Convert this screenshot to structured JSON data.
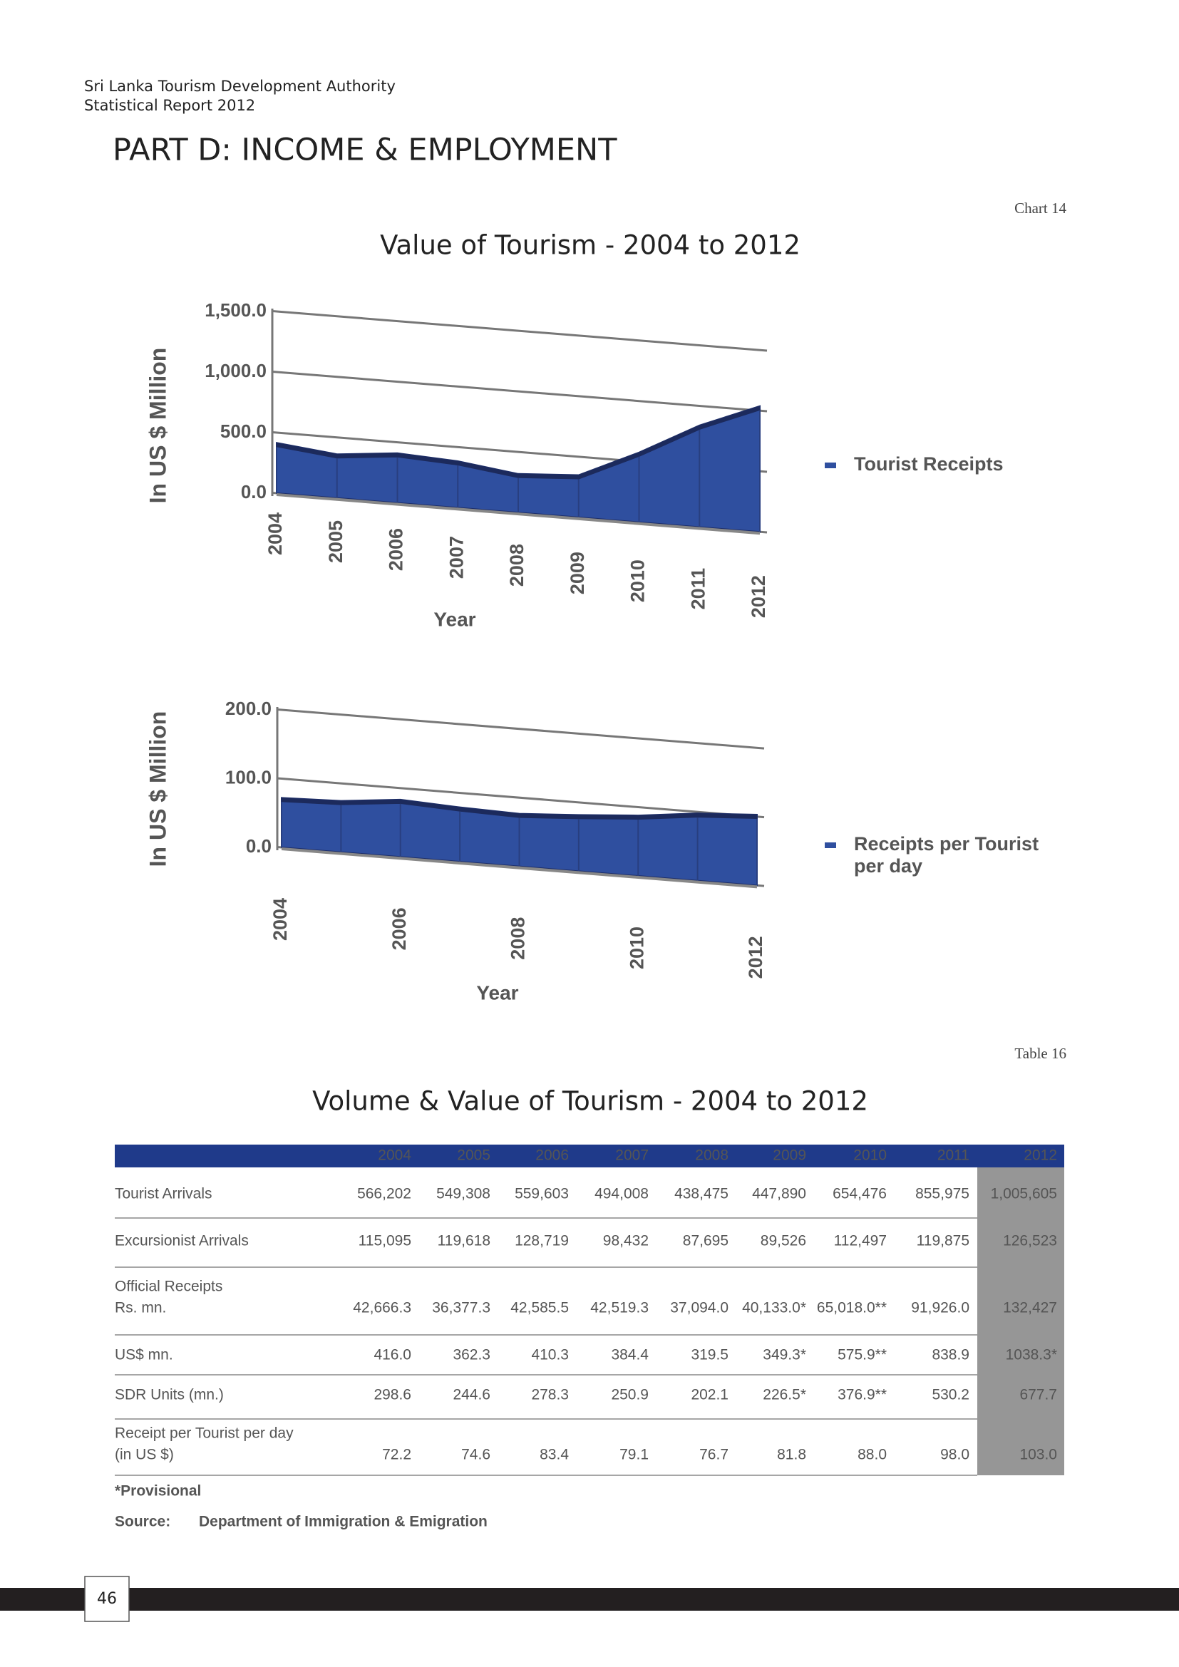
{
  "header": {
    "organization": "Sri Lanka Tourism Development Authority",
    "report": "Statistical Report 2012"
  },
  "part_title": "PART D: INCOME & EMPLOYMENT",
  "chart_label": "Chart 14",
  "chart_data": [
    {
      "type": "area",
      "title": "Value of Tourism - 2004 to 2012",
      "categories": [
        "2004",
        "2005",
        "2006",
        "2007",
        "2008",
        "2009",
        "2010",
        "2011",
        "2012"
      ],
      "series": [
        {
          "name": "Tourist Receipts",
          "color": "#2f4f9f",
          "values": [
            416.0,
            362.3,
            410.3,
            384.4,
            319.5,
            349.3,
            575.9,
            838.9,
            1038.3
          ]
        }
      ],
      "ylim": [
        0,
        1500
      ],
      "yticks": [
        {
          "value": 0,
          "label": "0.0"
        },
        {
          "value": 500,
          "label": "500.0"
        },
        {
          "value": 1000,
          "label": "1,000.0"
        },
        {
          "value": 1500,
          "label": "1,500.0"
        }
      ],
      "ylabel": "In US $ Million",
      "xlabel": "Year",
      "grid": true,
      "legend": "right"
    },
    {
      "type": "area",
      "categories": [
        "2004",
        null,
        "2006",
        null,
        "2008",
        null,
        "2010",
        null,
        "2012"
      ],
      "series": [
        {
          "name": "Receipts per Tourist per day",
          "color": "#2f4f9f",
          "values": [
            72.2,
            74.6,
            83.4,
            79.1,
            76.7,
            81.8,
            88.0,
            98.0,
            103.0
          ]
        }
      ],
      "ylim": [
        0,
        200
      ],
      "yticks": [
        {
          "value": 0,
          "label": "0.0"
        },
        {
          "value": 100,
          "label": "100.0"
        },
        {
          "value": 200,
          "label": "200.0"
        }
      ],
      "ylabel": "In US $ Million",
      "xlabel": "Year",
      "grid": true,
      "legend": "right"
    }
  ],
  "table_label": "Table 16",
  "table": {
    "title": "Volume & Value of Tourism - 2004 to 2012",
    "columns": [
      "2004",
      "2005",
      "2006",
      "2007",
      "2008",
      "2009",
      "2010",
      "2011",
      "2012"
    ],
    "rows": [
      {
        "label": [
          "Tourist Arrivals"
        ],
        "values": [
          "566,202",
          "549,308",
          "559,603",
          "494,008",
          "438,475",
          "447,890",
          "654,476",
          "855,975",
          "1,005,605"
        ]
      },
      {
        "label": [
          "Excursionist Arrivals"
        ],
        "values": [
          "115,095",
          "119,618",
          "128,719",
          "98,432",
          "87,695",
          "89,526",
          "112,497",
          "119,875",
          "126,523"
        ]
      },
      {
        "label": [
          "Official Receipts",
          "Rs. mn."
        ],
        "values": [
          "42,666.3",
          "36,377.3",
          "42,585.5",
          "42,519.3",
          "37,094.0",
          "40,133.0*",
          "65,018.0**",
          "91,926.0",
          "132,427"
        ]
      },
      {
        "label": [
          "US$ mn."
        ],
        "values": [
          "416.0",
          "362.3",
          "410.3",
          "384.4",
          "319.5",
          "349.3*",
          "575.9**",
          "838.9",
          "1038.3*"
        ]
      },
      {
        "label": [
          "SDR Units (mn.)"
        ],
        "values": [
          "298.6",
          "244.6",
          "278.3",
          "250.9",
          "202.1",
          "226.5*",
          "376.9**",
          "530.2",
          "677.7"
        ]
      },
      {
        "label": [
          "Receipt per Tourist per day",
          "(in US $)"
        ],
        "values": [
          "72.2",
          "74.6",
          "83.4",
          "79.1",
          "76.7",
          "81.8",
          "88.0",
          "98.0",
          "103.0"
        ]
      }
    ],
    "note": "*Provisional",
    "source": {
      "label": "Source:",
      "text": "Department of Immigration & Emigration"
    }
  },
  "page_number": "46"
}
